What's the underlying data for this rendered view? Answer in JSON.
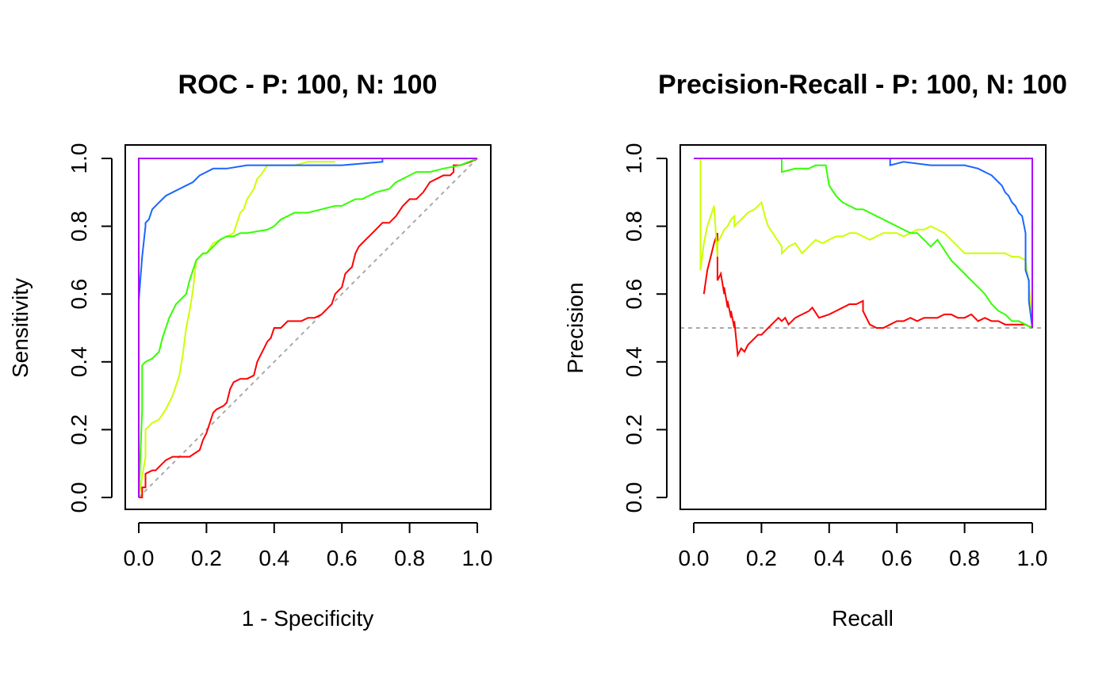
{
  "chart_data": [
    {
      "type": "line",
      "title": "ROC - P: 100, N: 100",
      "xlabel": "1 - Specificity",
      "ylabel": "Sensitivity",
      "xlim": [
        0,
        1
      ],
      "ylim": [
        0,
        1
      ],
      "xticks": [
        "0.0",
        "0.2",
        "0.4",
        "0.6",
        "0.8",
        "1.0"
      ],
      "yticks": [
        "0.0",
        "0.2",
        "0.4",
        "0.6",
        "0.8",
        "1.0"
      ],
      "grid": false,
      "legend": "none",
      "reference_line": {
        "x": [
          0,
          1
        ],
        "y": [
          0,
          1
        ],
        "color": "#aaaaaa",
        "style": "dashed"
      },
      "series": [
        {
          "color": "#ff0000",
          "x": [
            0,
            0.01,
            0.01,
            0.02,
            0.02,
            0.04,
            0.05,
            0.06,
            0.07,
            0.08,
            0.1,
            0.12,
            0.15,
            0.18,
            0.19,
            0.2,
            0.21,
            0.22,
            0.23,
            0.25,
            0.26,
            0.27,
            0.28,
            0.3,
            0.32,
            0.34,
            0.35,
            0.36,
            0.37,
            0.38,
            0.39,
            0.4,
            0.42,
            0.44,
            0.46,
            0.48,
            0.5,
            0.52,
            0.54,
            0.56,
            0.57,
            0.58,
            0.6,
            0.61,
            0.62,
            0.63,
            0.64,
            0.65,
            0.66,
            0.67,
            0.68,
            0.7,
            0.72,
            0.74,
            0.76,
            0.78,
            0.8,
            0.82,
            0.84,
            0.86,
            0.88,
            0.9,
            0.92,
            0.93,
            0.93,
            0.95,
            0.98,
            1.0
          ],
          "y": [
            0,
            0,
            0.03,
            0.03,
            0.07,
            0.08,
            0.08,
            0.09,
            0.1,
            0.11,
            0.12,
            0.12,
            0.12,
            0.14,
            0.17,
            0.19,
            0.22,
            0.25,
            0.26,
            0.27,
            0.28,
            0.32,
            0.34,
            0.35,
            0.35,
            0.36,
            0.4,
            0.42,
            0.44,
            0.46,
            0.47,
            0.5,
            0.5,
            0.52,
            0.52,
            0.52,
            0.53,
            0.53,
            0.54,
            0.56,
            0.57,
            0.6,
            0.62,
            0.66,
            0.67,
            0.68,
            0.72,
            0.74,
            0.75,
            0.76,
            0.77,
            0.79,
            0.81,
            0.81,
            0.83,
            0.86,
            0.88,
            0.88,
            0.9,
            0.93,
            0.94,
            0.95,
            0.95,
            0.96,
            0.98,
            0.98,
            0.99,
            1.0
          ]
        },
        {
          "color": "#ccff00",
          "x": [
            0,
            0.01,
            0.02,
            0.02,
            0.03,
            0.04,
            0.06,
            0.08,
            0.1,
            0.12,
            0.13,
            0.14,
            0.15,
            0.16,
            0.17,
            0.18,
            0.19,
            0.2,
            0.22,
            0.24,
            0.26,
            0.28,
            0.3,
            0.31,
            0.32,
            0.34,
            0.35,
            0.36,
            0.38,
            0.4,
            0.42,
            0.46,
            0.5,
            0.58
          ],
          "y": [
            0,
            0.06,
            0.12,
            0.2,
            0.21,
            0.22,
            0.23,
            0.26,
            0.3,
            0.36,
            0.42,
            0.5,
            0.55,
            0.61,
            0.7,
            0.71,
            0.72,
            0.72,
            0.75,
            0.76,
            0.77,
            0.78,
            0.84,
            0.85,
            0.88,
            0.91,
            0.94,
            0.95,
            0.98,
            0.98,
            0.98,
            0.98,
            0.99,
            0.99
          ]
        },
        {
          "color": "#33ff00",
          "x": [
            0,
            0.01,
            0.01,
            0.02,
            0.04,
            0.06,
            0.07,
            0.08,
            0.09,
            0.1,
            0.11,
            0.12,
            0.13,
            0.14,
            0.15,
            0.16,
            0.17,
            0.18,
            0.19,
            0.2,
            0.22,
            0.24,
            0.26,
            0.28,
            0.3,
            0.32,
            0.38,
            0.4,
            0.42,
            0.44,
            0.46,
            0.48,
            0.5,
            0.54,
            0.58,
            0.6,
            0.62,
            0.64,
            0.66,
            0.68,
            0.7,
            0.74,
            0.76,
            0.8,
            0.82,
            0.86,
            0.9,
            0.95,
            1.0
          ],
          "y": [
            0,
            0.26,
            0.39,
            0.4,
            0.41,
            0.43,
            0.47,
            0.5,
            0.53,
            0.55,
            0.57,
            0.58,
            0.59,
            0.6,
            0.64,
            0.67,
            0.7,
            0.71,
            0.72,
            0.72,
            0.74,
            0.76,
            0.77,
            0.77,
            0.78,
            0.78,
            0.79,
            0.8,
            0.82,
            0.83,
            0.84,
            0.84,
            0.84,
            0.85,
            0.86,
            0.86,
            0.87,
            0.88,
            0.88,
            0.89,
            0.9,
            0.91,
            0.93,
            0.95,
            0.96,
            0.96,
            0.97,
            0.98,
            1.0
          ]
        },
        {
          "color": "#1a66ff",
          "x": [
            0,
            0.0,
            0.01,
            0.02,
            0.02,
            0.03,
            0.04,
            0.05,
            0.06,
            0.07,
            0.08,
            0.1,
            0.12,
            0.14,
            0.16,
            0.17,
            0.18,
            0.2,
            0.22,
            0.26,
            0.32,
            0.5,
            0.6,
            0.72,
            0.72,
            1.0
          ],
          "y": [
            0,
            0.58,
            0.71,
            0.8,
            0.81,
            0.82,
            0.85,
            0.86,
            0.87,
            0.88,
            0.89,
            0.9,
            0.91,
            0.92,
            0.93,
            0.94,
            0.95,
            0.96,
            0.97,
            0.97,
            0.98,
            0.98,
            0.98,
            0.99,
            1.0,
            1.0
          ]
        },
        {
          "color": "#aa00ff",
          "x": [
            0,
            0,
            1.0
          ],
          "y": [
            0,
            1.0,
            1.0
          ]
        }
      ]
    },
    {
      "type": "line",
      "title": "Precision-Recall - P: 100, N: 100",
      "xlabel": "Recall",
      "ylabel": "Precision",
      "xlim": [
        0,
        1
      ],
      "ylim": [
        0,
        1
      ],
      "xticks": [
        "0.0",
        "0.2",
        "0.4",
        "0.6",
        "0.8",
        "1.0"
      ],
      "yticks": [
        "0.0",
        "0.2",
        "0.4",
        "0.6",
        "0.8",
        "1.0"
      ],
      "grid": false,
      "legend": "none",
      "reference_line": {
        "x": [
          -0.04,
          1.04
        ],
        "y": [
          0.5,
          0.5
        ],
        "color": "#aaaaaa",
        "style": "dashed"
      },
      "series": [
        {
          "color": "#ff0000",
          "x": [
            0.03,
            0.04,
            0.05,
            0.06,
            0.07,
            0.07,
            0.08,
            0.09,
            0.09,
            0.1,
            0.1,
            0.11,
            0.11,
            0.12,
            0.12,
            0.13,
            0.14,
            0.15,
            0.16,
            0.17,
            0.18,
            0.19,
            0.2,
            0.21,
            0.22,
            0.24,
            0.25,
            0.26,
            0.27,
            0.28,
            0.3,
            0.32,
            0.34,
            0.35,
            0.37,
            0.4,
            0.42,
            0.44,
            0.46,
            0.48,
            0.5,
            0.5,
            0.52,
            0.54,
            0.56,
            0.58,
            0.6,
            0.62,
            0.64,
            0.66,
            0.68,
            0.7,
            0.72,
            0.74,
            0.76,
            0.78,
            0.8,
            0.82,
            0.84,
            0.86,
            0.88,
            0.9,
            0.92,
            0.94,
            0.96,
            0.98,
            1.0
          ],
          "y": [
            0.6,
            0.67,
            0.71,
            0.75,
            0.78,
            0.64,
            0.66,
            0.6,
            0.62,
            0.56,
            0.58,
            0.53,
            0.55,
            0.5,
            0.52,
            0.42,
            0.44,
            0.43,
            0.45,
            0.46,
            0.47,
            0.48,
            0.48,
            0.49,
            0.5,
            0.52,
            0.53,
            0.52,
            0.53,
            0.51,
            0.53,
            0.54,
            0.55,
            0.56,
            0.53,
            0.54,
            0.55,
            0.56,
            0.57,
            0.57,
            0.58,
            0.55,
            0.51,
            0.5,
            0.5,
            0.51,
            0.52,
            0.52,
            0.53,
            0.52,
            0.53,
            0.53,
            0.53,
            0.54,
            0.54,
            0.53,
            0.53,
            0.54,
            0.52,
            0.53,
            0.52,
            0.52,
            0.51,
            0.51,
            0.51,
            0.51,
            0.5
          ]
        },
        {
          "color": "#ccff00",
          "x": [
            0.02,
            0.02,
            0.03,
            0.04,
            0.05,
            0.06,
            0.07,
            0.07,
            0.08,
            0.09,
            0.1,
            0.11,
            0.12,
            0.12,
            0.14,
            0.16,
            0.18,
            0.2,
            0.21,
            0.22,
            0.24,
            0.26,
            0.26,
            0.28,
            0.3,
            0.32,
            0.34,
            0.36,
            0.38,
            0.4,
            0.42,
            0.44,
            0.46,
            0.48,
            0.5,
            0.52,
            0.54,
            0.56,
            0.58,
            0.6,
            0.62,
            0.64,
            0.66,
            0.68,
            0.7,
            0.72,
            0.74,
            0.76,
            0.8,
            0.84,
            0.88,
            0.92,
            0.94,
            0.96,
            0.98,
            0.99,
            1.0
          ],
          "y": [
            1.0,
            0.67,
            0.75,
            0.8,
            0.83,
            0.86,
            0.71,
            0.75,
            0.77,
            0.79,
            0.8,
            0.82,
            0.83,
            0.8,
            0.82,
            0.84,
            0.85,
            0.87,
            0.83,
            0.8,
            0.77,
            0.74,
            0.72,
            0.74,
            0.75,
            0.72,
            0.74,
            0.76,
            0.75,
            0.76,
            0.77,
            0.77,
            0.78,
            0.78,
            0.77,
            0.76,
            0.77,
            0.78,
            0.78,
            0.78,
            0.77,
            0.78,
            0.79,
            0.79,
            0.8,
            0.79,
            0.78,
            0.76,
            0.72,
            0.72,
            0.72,
            0.72,
            0.71,
            0.71,
            0.7,
            0.63,
            0.5
          ]
        },
        {
          "color": "#33ff00",
          "x": [
            0.26,
            0.26,
            0.3,
            0.34,
            0.36,
            0.39,
            0.4,
            0.42,
            0.44,
            0.46,
            0.48,
            0.5,
            0.52,
            0.54,
            0.56,
            0.58,
            0.6,
            0.62,
            0.64,
            0.66,
            0.68,
            0.7,
            0.72,
            0.74,
            0.76,
            0.78,
            0.8,
            0.82,
            0.84,
            0.86,
            0.88,
            0.9,
            0.92,
            0.94,
            0.96,
            0.98,
            1.0
          ],
          "y": [
            1.0,
            0.96,
            0.97,
            0.97,
            0.98,
            0.98,
            0.92,
            0.89,
            0.87,
            0.86,
            0.85,
            0.85,
            0.84,
            0.83,
            0.82,
            0.81,
            0.8,
            0.79,
            0.78,
            0.78,
            0.76,
            0.74,
            0.76,
            0.73,
            0.7,
            0.68,
            0.66,
            0.64,
            0.62,
            0.6,
            0.57,
            0.55,
            0.54,
            0.52,
            0.52,
            0.51,
            0.5
          ]
        },
        {
          "color": "#1a66ff",
          "x": [
            0.58,
            0.58,
            0.62,
            0.7,
            0.8,
            0.84,
            0.86,
            0.88,
            0.9,
            0.91,
            0.92,
            0.93,
            0.94,
            0.95,
            0.96,
            0.97,
            0.98,
            0.98,
            0.99,
            0.99,
            1.0
          ],
          "y": [
            1.0,
            0.98,
            0.99,
            0.98,
            0.98,
            0.97,
            0.96,
            0.95,
            0.93,
            0.92,
            0.9,
            0.89,
            0.87,
            0.86,
            0.84,
            0.83,
            0.78,
            0.67,
            0.64,
            0.58,
            0.5
          ]
        },
        {
          "color": "#aa00ff",
          "x": [
            0,
            1.0,
            1.0
          ],
          "y": [
            1.0,
            1.0,
            0.5
          ]
        }
      ]
    }
  ]
}
